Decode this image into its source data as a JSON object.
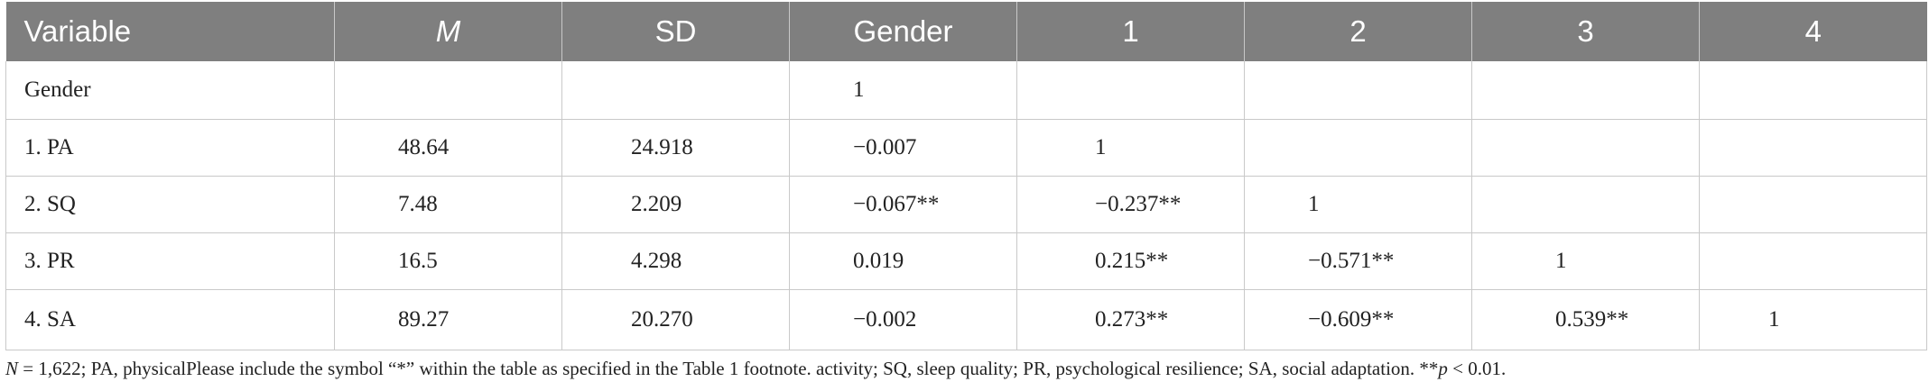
{
  "table": {
    "headers": [
      {
        "label": "Variable",
        "italic": false
      },
      {
        "label": "M",
        "italic": true
      },
      {
        "label": "SD",
        "italic": false
      },
      {
        "label": "Gender",
        "italic": false
      },
      {
        "label": "1",
        "italic": false
      },
      {
        "label": "2",
        "italic": false
      },
      {
        "label": "3",
        "italic": false
      },
      {
        "label": "4",
        "italic": false
      }
    ],
    "rows": [
      [
        "Gender",
        "",
        "",
        "1",
        "",
        "",
        "",
        ""
      ],
      [
        "1. PA",
        "48.64",
        "24.918",
        "−0.007",
        "1",
        "",
        "",
        ""
      ],
      [
        "2. SQ",
        "7.48",
        "2.209",
        "−0.067**",
        "−0.237**",
        "1",
        "",
        ""
      ],
      [
        "3. PR",
        "16.5",
        "4.298",
        "0.019",
        "0.215**",
        "−0.571**",
        "1",
        ""
      ],
      [
        "4. SA",
        "89.27",
        "20.270",
        "−0.002",
        "0.273**",
        "−0.609**",
        "0.539**",
        "1"
      ]
    ]
  },
  "footnote": {
    "n_symbol": "N",
    "text_a": " = 1,622; PA, physicalPlease include the symbol “*” within the table as specified in the Table 1 footnote. activity; SQ, sleep quality; PR, psychological resilience; SA, social adaptation. **",
    "p_symbol": "p",
    "text_b": " < 0.01."
  },
  "colors": {
    "header_bg": "#7f7f7f",
    "header_text": "#ffffff",
    "grid": "#c9c9c9",
    "body_text": "#222222"
  }
}
